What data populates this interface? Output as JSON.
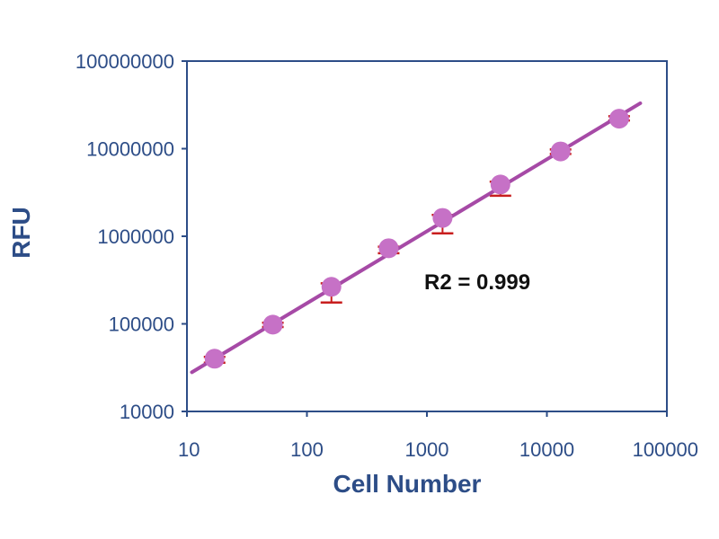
{
  "chart_data": {
    "type": "scatter",
    "xlabel": "Cell Number",
    "ylabel": "RFU",
    "x_scale": "log",
    "y_scale": "log",
    "xlim": [
      10,
      100000
    ],
    "ylim": [
      10000,
      100000000
    ],
    "x_ticks": [
      10,
      100,
      1000,
      10000,
      100000
    ],
    "y_ticks": [
      10000,
      100000,
      1000000,
      10000000,
      100000000
    ],
    "x_tick_labels": [
      "10",
      "100",
      "1000",
      "10000",
      "100000"
    ],
    "y_tick_labels": [
      "10000",
      "100000",
      "1000000",
      "10000000",
      "100000000"
    ],
    "grid": false,
    "legend": false,
    "annotation": "R2 = 0.999",
    "series": [
      {
        "x": [
          17,
          52,
          160,
          480,
          1350,
          4100,
          13000,
          40000
        ],
        "y": [
          40000,
          98000,
          265000,
          730000,
          1620000,
          3900000,
          9300000,
          22000000
        ],
        "error_lower": [
          36000,
          92000,
          175000,
          640000,
          1080000,
          2900000,
          8700000,
          21000000
        ],
        "error_upper": [
          42000,
          103000,
          290000,
          760000,
          1750000,
          4200000,
          9800000,
          23500000
        ]
      }
    ],
    "trendline": {
      "x": [
        11,
        60000
      ],
      "y": [
        28000,
        33000000
      ]
    },
    "colors": {
      "axis": "#2d4d87",
      "marker": "#c671c6",
      "trendline": "#a64aa6",
      "error_bar": "#c81e1e"
    }
  }
}
